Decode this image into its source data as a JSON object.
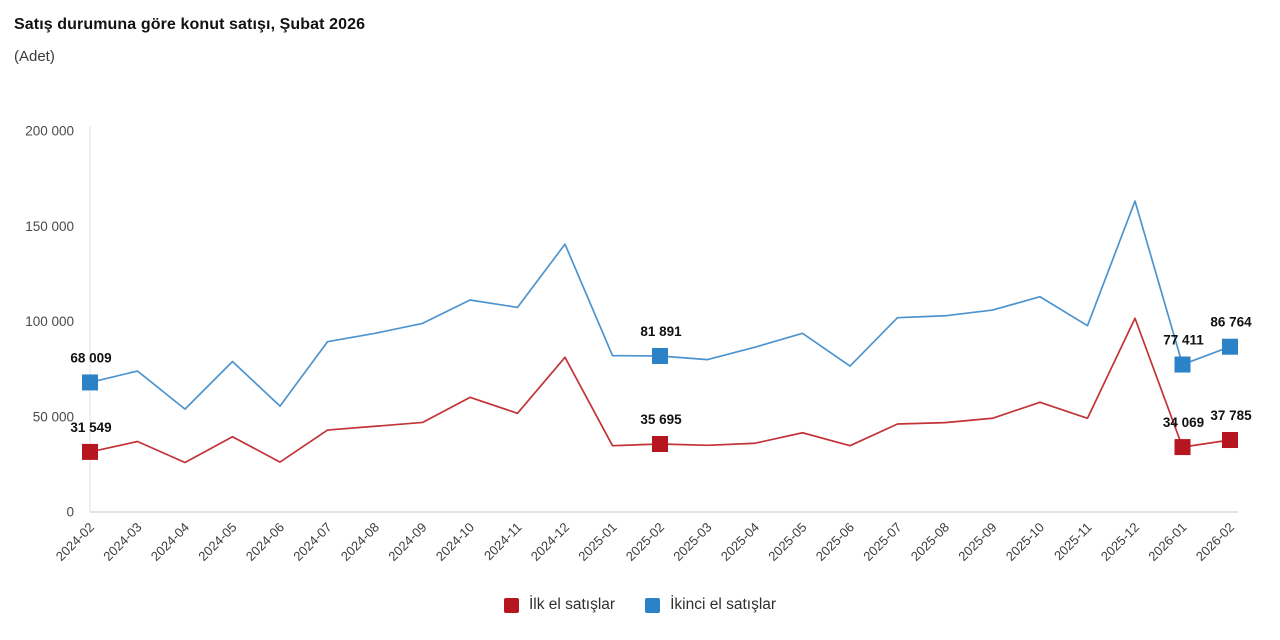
{
  "header": {
    "title": "Satış durumuna göre konut satışı, Şubat 2026",
    "subtitle": "(Adet)"
  },
  "chart_data": {
    "type": "line",
    "title": "Satış durumuna göre konut satışı, Şubat 2026",
    "unit_label": "(Adet)",
    "x": [
      "2024-02",
      "2024-03",
      "2024-04",
      "2024-05",
      "2024-06",
      "2024-07",
      "2024-08",
      "2024-09",
      "2024-10",
      "2024-11",
      "2024-12",
      "2025-01",
      "2025-02",
      "2025-03",
      "2025-04",
      "2025-05",
      "2025-06",
      "2025-07",
      "2025-08",
      "2025-09",
      "2025-10",
      "2025-11",
      "2025-12",
      "2026-01",
      "2026-02"
    ],
    "series": [
      {
        "name": "İlk el satışlar",
        "line_color": "#c23338",
        "marker_color": "#b5161f",
        "values": [
          31549,
          37000,
          26000,
          39500,
          26200,
          43000,
          45000,
          47000,
          60200,
          51800,
          81200,
          34800,
          35695,
          35000,
          36100,
          41600,
          34800,
          46200,
          46900,
          49200,
          57600,
          49200,
          101700,
          34069,
          37785
        ],
        "labeled": {
          "2024-02": "31 549",
          "2025-02": "35 695",
          "2026-01": "34 069",
          "2026-02": "37 785"
        }
      },
      {
        "name": "İkinci el satışlar",
        "line_color": "#4d94cf",
        "marker_color": "#2b82c6",
        "values": [
          68009,
          74000,
          54000,
          79000,
          55600,
          89400,
          93800,
          99000,
          111300,
          107400,
          140600,
          82100,
          81891,
          80000,
          86500,
          93800,
          76600,
          102000,
          103000,
          106000,
          113000,
          97800,
          163200,
          77411,
          86764
        ],
        "labeled": {
          "2024-02": "68 009",
          "2025-02": "81 891",
          "2026-01": "77 411",
          "2026-02": "86 764"
        }
      }
    ],
    "ylim": [
      0,
      200000
    ],
    "yticks": [
      0,
      50000,
      100000,
      150000,
      200000
    ],
    "ytick_labels": [
      "0",
      "50 000",
      "100 000",
      "150 000",
      "200 000"
    ],
    "grid": false,
    "legend_position": "bottom",
    "axis_color_vertical": "#ececec",
    "axis_color_horizontal": "#d9d9d9",
    "tick_text_color": "#4a4a4a",
    "xtick_text_color": "#3d3d3d",
    "annotation_text_color": "#111111"
  },
  "legend": {
    "items": [
      {
        "label": "İlk el satışlar",
        "color": "#b5161f"
      },
      {
        "label": "İkinci el satışlar",
        "color": "#2b82c6"
      }
    ]
  }
}
